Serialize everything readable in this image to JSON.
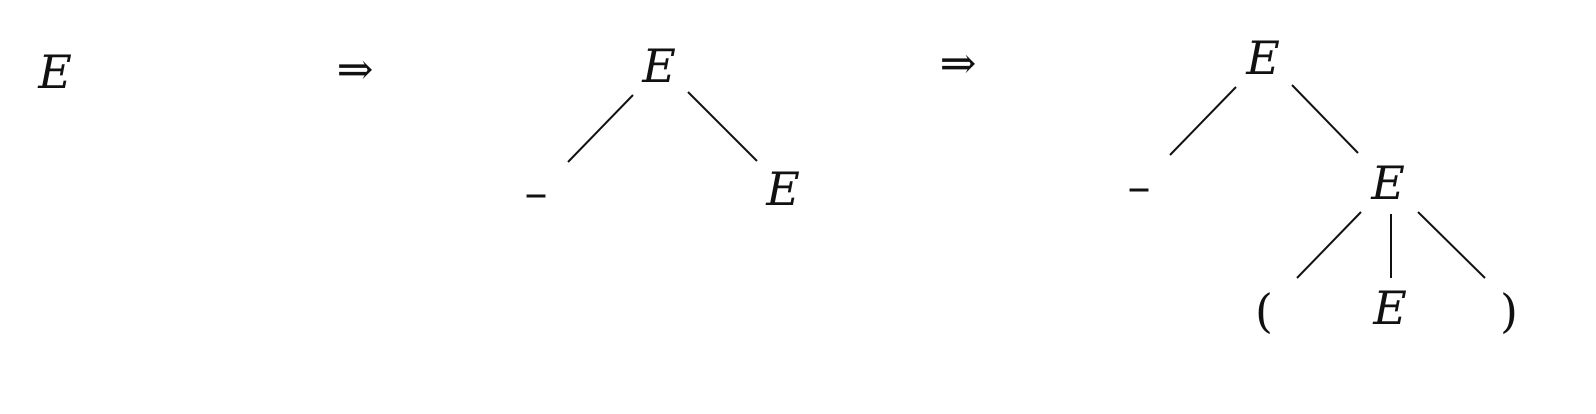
{
  "steps": [
    {
      "root": "E"
    },
    {
      "arrow": "⇒",
      "root": "E",
      "children": [
        "–",
        "E"
      ]
    },
    {
      "arrow": "⇒",
      "root": "E",
      "children": [
        "–",
        "E"
      ],
      "grandchildren": [
        "(",
        "E",
        ")"
      ]
    }
  ],
  "colors": {
    "ink": "#111111",
    "background": "#ffffff"
  }
}
